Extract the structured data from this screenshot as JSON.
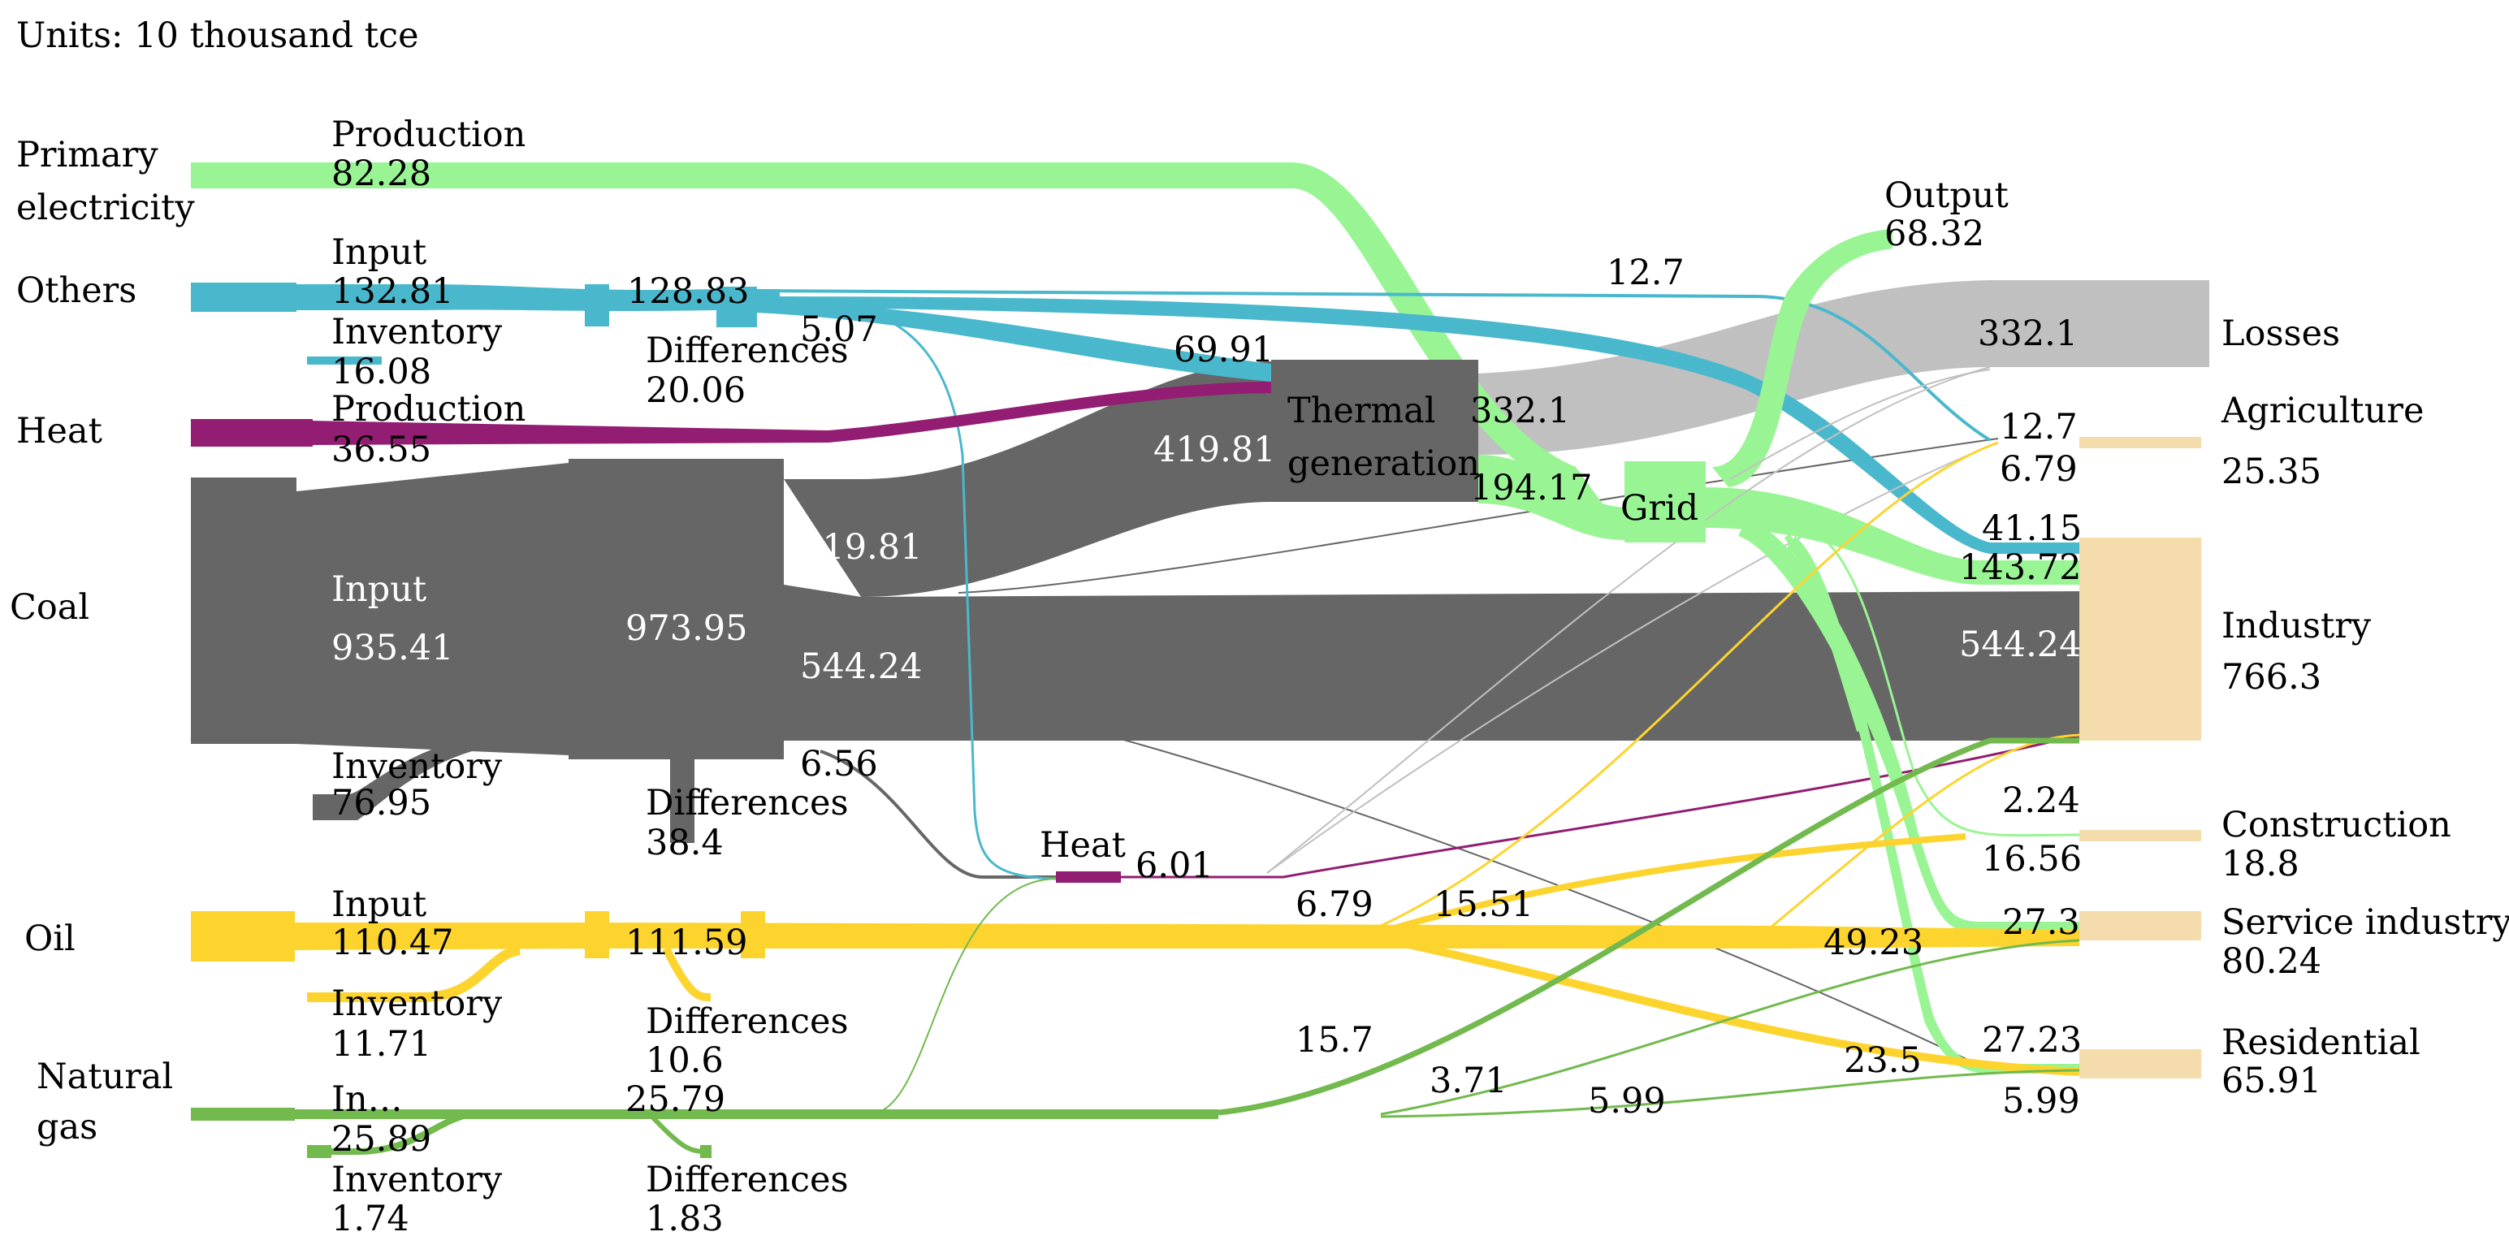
{
  "units": "Units: 10 thousand tce",
  "colors": {
    "primary_electricity": "#99f593",
    "others": "#4ab8cc",
    "heat": "#921d72",
    "coal": "#666666",
    "oil": "#fdd42e",
    "natural_gas": "#72b94e",
    "losses": "#c0c0c0",
    "end_use": "#f4dcac"
  },
  "sources": {
    "primary_electricity": {
      "name": "Primary electricity",
      "line1": "Primary",
      "line2": "electricity",
      "label": "Production",
      "value": "82.28"
    },
    "others": {
      "name": "Others",
      "input_label": "Input",
      "input_value": "132.81",
      "inventory_label": "Inventory",
      "inventory_value": "16.08",
      "stage_value": "128.83",
      "differences_label": "Differences",
      "differences_value": "20.06",
      "to_heat": "5.07",
      "to_thermal": "69.91",
      "to_grid_direct": "12.7"
    },
    "heat": {
      "name": "Heat",
      "label": "Production",
      "value": "36.55"
    },
    "coal": {
      "name": "Coal",
      "input_label": "Input",
      "input_value": "935.41",
      "inventory_label": "Inventory",
      "inventory_value": "76.95",
      "stage_value": "973.95",
      "differences_label": "Differences",
      "differences_value": "38.4",
      "to_thermal": "419.81",
      "to_industry": "544.24",
      "to_heat": "6.56"
    },
    "oil": {
      "name": "Oil",
      "input_label": "Input",
      "input_value": "110.47",
      "inventory_label": "Inventory",
      "inventory_value": "11.71",
      "stage_value": "111.59",
      "differences_label": "Differences",
      "differences_value": "10.6",
      "flow_a": "6.79",
      "flow_b": "15.51",
      "flow_c": "49.23",
      "flow_d": "23.5"
    },
    "natural_gas": {
      "name": "Natural gas",
      "line1": "Natural",
      "line2": "gas",
      "input_label": "In…",
      "input_value": "25.89",
      "inventory_label": "Inventory",
      "inventory_value": "1.74",
      "stage_value": "25.79",
      "differences_label": "Differences",
      "differences_value": "1.83",
      "flow_a": "15.7",
      "flow_b": "3.71",
      "flow_c": "5.99"
    }
  },
  "transform": {
    "thermal": {
      "line1": "Thermal",
      "line2": "generation",
      "input_value": "419.81",
      "loss_value": "332.1",
      "output_value": "194.17"
    },
    "heat": {
      "name": "Heat",
      "value": "6.01"
    },
    "grid": {
      "name": "Grid",
      "output_label": "Output",
      "output_value": "68.32"
    }
  },
  "sinks": {
    "losses": {
      "name": "Losses",
      "inflow": "332.1"
    },
    "agriculture": {
      "name": "Agriculture",
      "value": "25.35",
      "inflow_a": "12.7",
      "inflow_b": "6.79"
    },
    "industry": {
      "name": "Industry",
      "value": "766.3",
      "inflow_a": "41.15",
      "inflow_b": "143.72",
      "inflow_c": "544.24"
    },
    "construction": {
      "name": "Construction",
      "value": "18.8",
      "inflow_a": "2.24",
      "inflow_b": "16.56"
    },
    "service_industry": {
      "name": "Service industry",
      "value": "80.24",
      "inflow": "27.3"
    },
    "residential": {
      "name": "Residential",
      "value": "65.91",
      "inflow_a": "27.23",
      "inflow_b": "5.99"
    }
  }
}
